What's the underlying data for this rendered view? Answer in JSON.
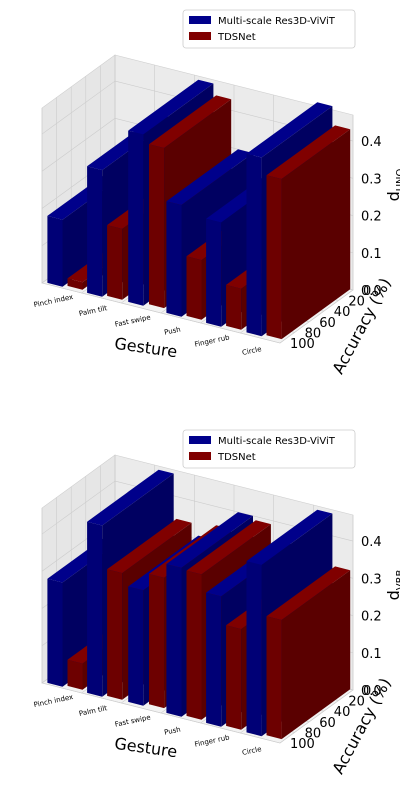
{
  "chart_data": [
    {
      "type": "bar3d",
      "categories": [
        "Pinch index",
        "Palm tilt",
        "Fast swipe",
        "Push",
        "Finger rub",
        "Circle"
      ],
      "series": [
        {
          "name": "Multi-scale Res3D-ViViT",
          "values": [
            0.18,
            0.34,
            0.46,
            0.3,
            0.28,
            0.48
          ],
          "accuracy": [
            98,
            98,
            96,
            98,
            98,
            97
          ]
        },
        {
          "name": "TDSNet",
          "values": [
            0.02,
            0.19,
            0.43,
            0.16,
            0.11,
            0.43
          ],
          "accuracy": [
            95,
            95,
            92,
            95,
            95,
            94
          ]
        }
      ],
      "colors": [
        "#00008b",
        "#800000"
      ],
      "xlabel": "Gesture",
      "ylabel": "Accuracy (%)",
      "zlabel": "d_UNQ",
      "zlabel_main": "d",
      "zlabel_sub": "UNQ",
      "y_ticks": [
        "0",
        "20",
        "40",
        "60",
        "80",
        "100"
      ],
      "z_ticks": [
        "0.0",
        "0.1",
        "0.2",
        "0.3",
        "0.4"
      ],
      "zlim": [
        0,
        0.47
      ],
      "grid": true,
      "legend": "top-right"
    },
    {
      "type": "bar3d",
      "categories": [
        "Pinch index",
        "Palm tilt",
        "Fast swipe",
        "Push",
        "Finger rub",
        "Circle"
      ],
      "series": [
        {
          "name": "Multi-scale Res3D-ViViT",
          "values": [
            0.28,
            0.46,
            0.31,
            0.4,
            0.35,
            0.46
          ],
          "accuracy": [
            98,
            98,
            96,
            98,
            98,
            97
          ]
        },
        {
          "name": "TDSNet",
          "values": [
            0.07,
            0.34,
            0.35,
            0.39,
            0.27,
            0.32
          ],
          "accuracy": [
            95,
            95,
            92,
            95,
            95,
            94
          ]
        }
      ],
      "colors": [
        "#00008b",
        "#800000"
      ],
      "xlabel": "Gesture",
      "ylabel": "Accuracy (%)",
      "zlabel": "d_VRB",
      "zlabel_main": "d",
      "zlabel_sub": "VRB",
      "y_ticks": [
        "0",
        "20",
        "40",
        "60",
        "80",
        "100"
      ],
      "z_ticks": [
        "0.0",
        "0.1",
        "0.2",
        "0.3",
        "0.4"
      ],
      "zlim": [
        0,
        0.47
      ],
      "grid": true,
      "legend": "top-right"
    }
  ]
}
